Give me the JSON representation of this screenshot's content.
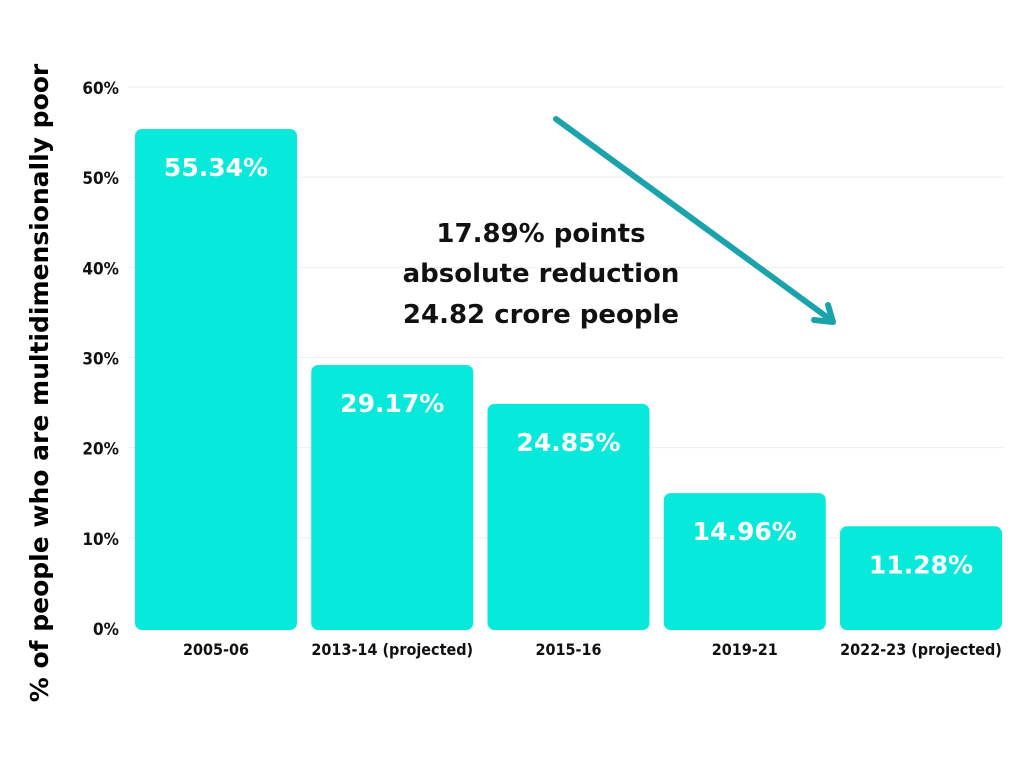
{
  "chart_data": {
    "type": "bar",
    "ylabel": "% of people who are multidimensionally poor",
    "xlabel": "",
    "ylim": [
      0,
      60
    ],
    "yticks": [
      "0%",
      "10%",
      "20%",
      "30%",
      "40%",
      "50%",
      "60%"
    ],
    "grid": true,
    "categories": [
      "2005-06",
      "2013-14 (projected)",
      "2015-16",
      "2019-21",
      "2022-23 (projected)"
    ],
    "values": [
      55.34,
      29.17,
      24.85,
      14.96,
      11.28
    ],
    "value_labels": [
      "55.34%",
      "29.17%",
      "24.85%",
      "14.96%",
      "11.28%"
    ],
    "annotation": {
      "lines": [
        "17.89% points",
        "absolute reduction",
        "24.82 crore people"
      ],
      "arrow": "downward trend arrow"
    },
    "colors": {
      "bar": "#07EADB",
      "arrow": "#1BA3AC",
      "grid": "#EEEEEE",
      "value_text": "#FFFFFF"
    }
  }
}
